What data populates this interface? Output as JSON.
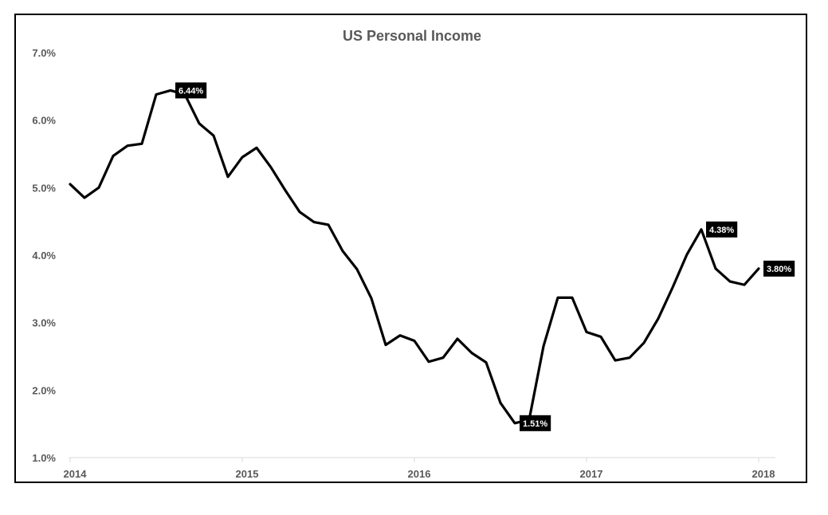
{
  "chart_data": {
    "type": "line",
    "title": "US Personal Income",
    "xlabel": "",
    "ylabel": "",
    "x_tick_labels": [
      "2014",
      "2015",
      "2016",
      "2017",
      "2018"
    ],
    "y_tick_labels": [
      "1.0%",
      "2.0%",
      "3.0%",
      "4.0%",
      "5.0%",
      "6.0%",
      "7.0%"
    ],
    "ylim": [
      1.0,
      7.0
    ],
    "xlim": [
      "2014-01",
      "2018-01"
    ],
    "grid": false,
    "legend": "none",
    "series": [
      {
        "x": [
          "2014-01",
          "2014-02",
          "2014-03",
          "2014-04",
          "2014-05",
          "2014-06",
          "2014-07",
          "2014-08",
          "2014-09",
          "2014-10",
          "2014-11",
          "2014-12",
          "2015-01",
          "2015-02",
          "2015-03",
          "2015-04",
          "2015-05",
          "2015-06",
          "2015-07",
          "2015-08",
          "2015-09",
          "2015-10",
          "2015-11",
          "2015-12",
          "2016-01",
          "2016-02",
          "2016-03",
          "2016-04",
          "2016-05",
          "2016-06",
          "2016-07",
          "2016-08",
          "2016-09",
          "2016-10",
          "2016-11",
          "2016-12",
          "2017-01",
          "2017-02",
          "2017-03",
          "2017-04",
          "2017-05",
          "2017-06",
          "2017-07",
          "2017-08",
          "2017-09",
          "2017-10",
          "2017-11",
          "2017-12",
          "2018-01"
        ],
        "values": [
          5.05,
          4.85,
          5.0,
          5.47,
          5.62,
          5.65,
          6.38,
          6.44,
          6.38,
          5.95,
          5.77,
          5.16,
          5.45,
          5.59,
          5.3,
          4.96,
          4.64,
          4.49,
          4.45,
          4.06,
          3.79,
          3.36,
          2.67,
          2.81,
          2.73,
          2.42,
          2.48,
          2.76,
          2.55,
          2.41,
          1.81,
          1.51,
          1.56,
          2.65,
          3.37,
          3.37,
          2.86,
          2.79,
          2.44,
          2.48,
          2.7,
          3.06,
          3.52,
          4.01,
          4.38,
          3.8,
          3.61,
          3.56,
          3.8
        ],
        "color": "#000000"
      }
    ],
    "annotations": [
      {
        "x": "2014-08",
        "value": 6.44,
        "text": "6.44%"
      },
      {
        "x": "2016-08",
        "value": 1.51,
        "text": "1.51%"
      },
      {
        "x": "2017-09",
        "value": 4.38,
        "text": "4.38%"
      },
      {
        "x": "2018-01",
        "value": 3.8,
        "text": "3.80%"
      }
    ]
  }
}
